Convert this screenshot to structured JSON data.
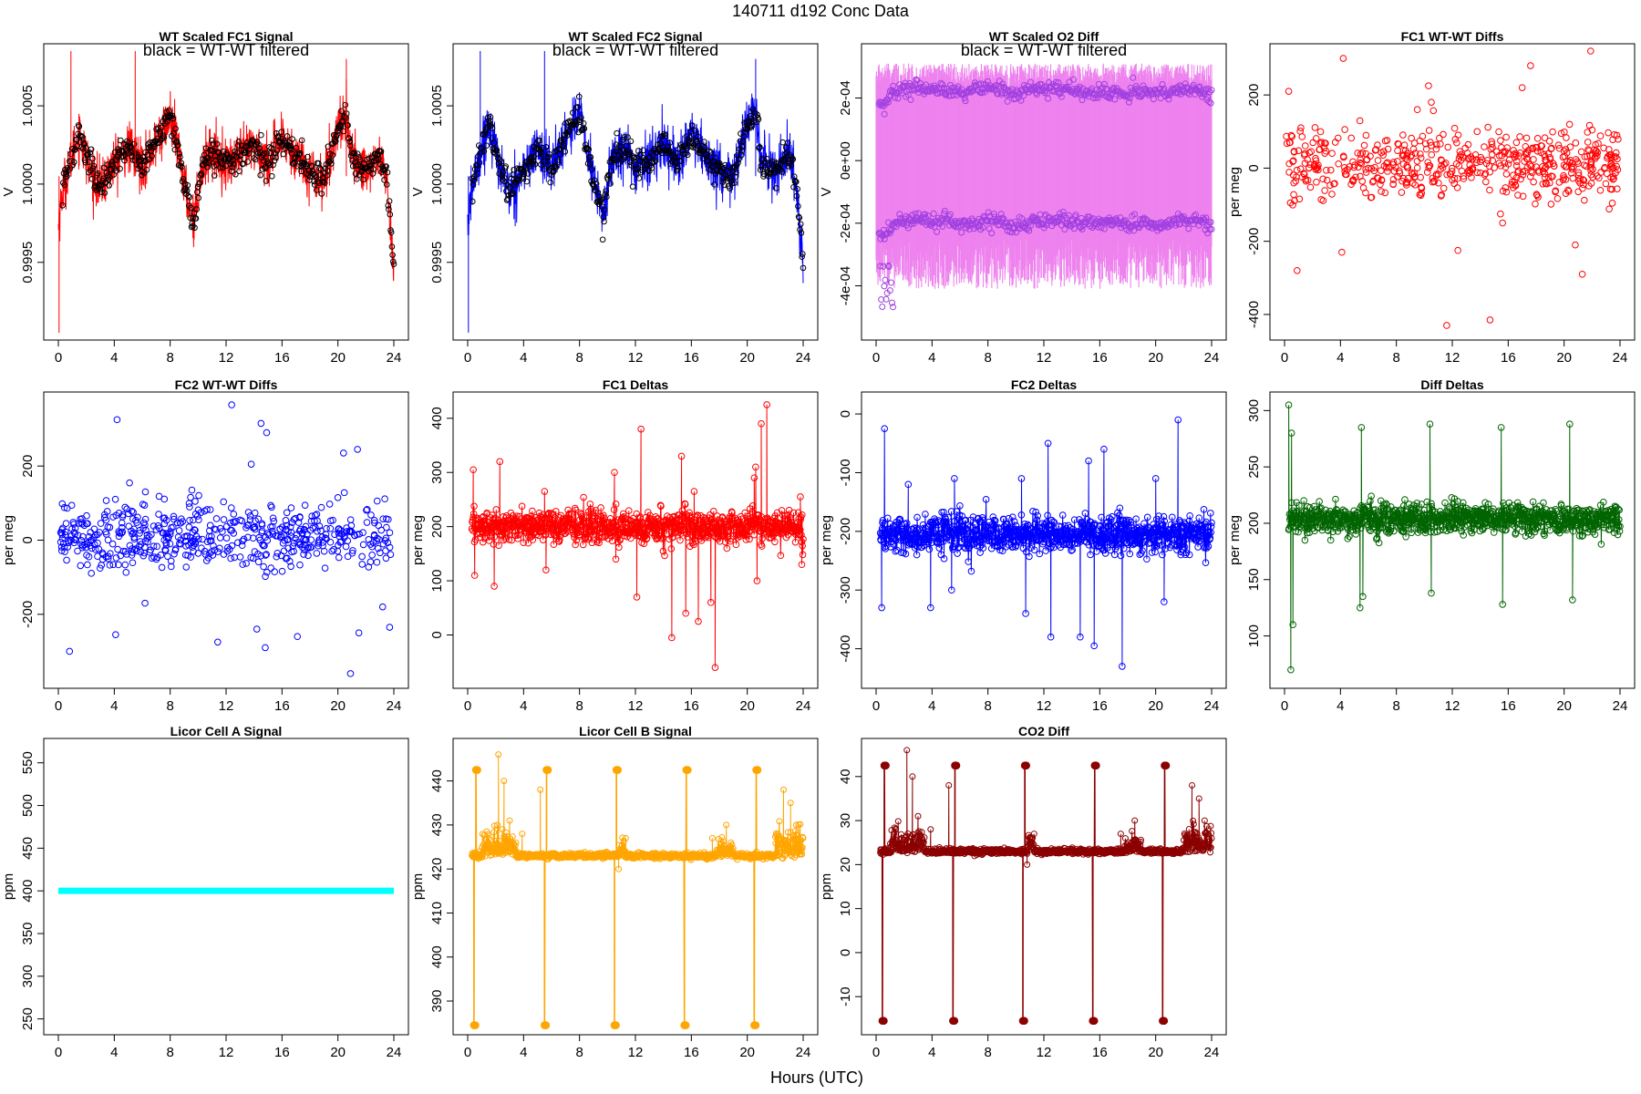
{
  "header": {
    "title": "140711   d192   Conc Data"
  },
  "footer": {
    "xlabel": "Hours (UTC)"
  },
  "chart_data": [
    {
      "id": "fc1sig",
      "type": "line",
      "title": "WT Scaled FC1 Signal",
      "note": "black = WT-WT filtered",
      "ylabel": "V",
      "xlim": [
        0,
        24
      ],
      "ylim": [
        0.99905,
        1.00085
      ],
      "xticks": [
        0,
        4,
        8,
        12,
        16,
        20,
        24
      ],
      "yticks": [
        0.9995,
        1.0,
        1.0005
      ],
      "ytick_labels": [
        "0.9995",
        "1.0000",
        "1.0005"
      ],
      "color": "#ff0000",
      "overlay_color": "#000000",
      "marker": "open-circle",
      "style": "dense",
      "base": 1.00005,
      "amp": 0.00018,
      "noise": 9e-05,
      "overlay": true,
      "profile": [
        [
          0,
          -1.8
        ],
        [
          0.3,
          -0.5
        ],
        [
          0.8,
          0.4
        ],
        [
          1.5,
          1.6
        ],
        [
          2.2,
          0.3
        ],
        [
          3,
          -0.4
        ],
        [
          4,
          0.5
        ],
        [
          5,
          1.0
        ],
        [
          6,
          0.4
        ],
        [
          7,
          1.2
        ],
        [
          8,
          2.1
        ],
        [
          8.6,
          0.8
        ],
        [
          9.2,
          -0.7
        ],
        [
          9.7,
          -1.6
        ],
        [
          10.3,
          0.4
        ],
        [
          11,
          0.9
        ],
        [
          12,
          0.4
        ],
        [
          13,
          0.7
        ],
        [
          14,
          1.1
        ],
        [
          15,
          0.5
        ],
        [
          16,
          1.2
        ],
        [
          17,
          0.8
        ],
        [
          18,
          0.2
        ],
        [
          19,
          -0.2
        ],
        [
          20,
          1.8
        ],
        [
          20.6,
          2.2
        ],
        [
          21,
          0.6
        ],
        [
          22,
          0.2
        ],
        [
          23,
          0.7
        ],
        [
          23.5,
          -0.2
        ],
        [
          24,
          -3.2
        ]
      ]
    },
    {
      "id": "fc2sig",
      "type": "line",
      "title": "WT Scaled FC2 Signal",
      "note": "black = WT-WT filtered",
      "ylabel": "V",
      "xlim": [
        0,
        24
      ],
      "ylim": [
        0.99905,
        1.00085
      ],
      "xticks": [
        0,
        4,
        8,
        12,
        16,
        20,
        24
      ],
      "yticks": [
        0.9995,
        1.0,
        1.0005
      ],
      "ytick_labels": [
        "0.9995",
        "1.0000",
        "1.0005"
      ],
      "color": "#0000ff",
      "overlay_color": "#000000",
      "marker": "open-circle",
      "style": "dense",
      "base": 1.00005,
      "amp": 0.00018,
      "noise": 9e-05,
      "overlay": true,
      "profile": [
        [
          0,
          -1.8
        ],
        [
          0.3,
          -0.5
        ],
        [
          0.8,
          0.6
        ],
        [
          1.5,
          1.9
        ],
        [
          2.2,
          0.5
        ],
        [
          3,
          -0.6
        ],
        [
          4,
          0.2
        ],
        [
          5,
          1.0
        ],
        [
          6,
          0.3
        ],
        [
          7,
          1.4
        ],
        [
          8,
          2.3
        ],
        [
          8.6,
          0.7
        ],
        [
          9.2,
          -0.5
        ],
        [
          9.7,
          -1.4
        ],
        [
          10.3,
          0.5
        ],
        [
          11,
          1.1
        ],
        [
          12,
          0.3
        ],
        [
          13,
          0.6
        ],
        [
          14,
          1.2
        ],
        [
          15,
          0.5
        ],
        [
          16,
          1.4
        ],
        [
          17,
          0.7
        ],
        [
          18,
          0.1
        ],
        [
          19,
          -0.1
        ],
        [
          20,
          1.9
        ],
        [
          20.6,
          2.3
        ],
        [
          21,
          0.5
        ],
        [
          22,
          0.2
        ],
        [
          23,
          0.8
        ],
        [
          23.5,
          -0.3
        ],
        [
          24,
          -3.1
        ]
      ]
    },
    {
      "id": "o2diff",
      "type": "line",
      "title": "WT Scaled O2 Diff",
      "note": "black = WT-WT filtered",
      "ylabel": "V",
      "xlim": [
        0,
        24
      ],
      "ylim": [
        -0.00055,
        0.00035
      ],
      "xticks": [
        0,
        4,
        8,
        12,
        16,
        20,
        24
      ],
      "yticks": [
        -0.0004,
        -0.0002,
        0,
        0.0002
      ],
      "ytick_labels": [
        "-4e-04",
        "-2e-04",
        "0e+00",
        "2e-04"
      ],
      "color": "#ee82ee",
      "marker_color": "#a040e0",
      "marker": "open-circle",
      "style": "band",
      "band_upper": 0.00031,
      "band_lower": -0.00041,
      "env_upper": 0.00022,
      "env_lower": -0.0002,
      "env_profile": [
        [
          0,
          -0.9
        ],
        [
          0.5,
          -1.6
        ],
        [
          1,
          -0.3
        ],
        [
          2,
          0.2
        ],
        [
          3,
          0.4
        ],
        [
          4,
          0.1
        ],
        [
          5,
          0.3
        ],
        [
          6,
          -0.2
        ],
        [
          7,
          0.1
        ],
        [
          8,
          0.4
        ],
        [
          9,
          0.1
        ],
        [
          10,
          -0.4
        ],
        [
          11,
          0.2
        ],
        [
          12,
          0.1
        ],
        [
          13,
          0.3
        ],
        [
          14,
          0.2
        ],
        [
          15,
          0.0
        ],
        [
          16,
          -0.1
        ],
        [
          17,
          0.2
        ],
        [
          18,
          -0.3
        ],
        [
          19,
          0.1
        ],
        [
          20,
          -0.2
        ],
        [
          21,
          0.0
        ],
        [
          22,
          0.3
        ],
        [
          23,
          0.2
        ],
        [
          24,
          -0.4
        ]
      ]
    },
    {
      "id": "fc1wtwt",
      "type": "scatter",
      "title": "FC1 WT-WT Diffs",
      "ylabel": "per meg",
      "xlim": [
        0,
        24
      ],
      "ylim": [
        -450,
        320
      ],
      "xticks": [
        0,
        4,
        8,
        12,
        16,
        20,
        24
      ],
      "yticks": [
        -400,
        -200,
        0,
        200
      ],
      "ytick_labels": [
        "-400",
        "-200",
        "0",
        "200"
      ],
      "color": "#ff0000",
      "marker": "open-circle",
      "n": 560,
      "base": 10,
      "spread": 45,
      "outliers": [
        [
          0.3,
          210
        ],
        [
          0.9,
          -280
        ],
        [
          4.2,
          300
        ],
        [
          4.1,
          -230
        ],
        [
          10.3,
          225
        ],
        [
          10.5,
          180
        ],
        [
          11.6,
          -430
        ],
        [
          12.4,
          -225
        ],
        [
          14.7,
          -415
        ],
        [
          17,
          220
        ],
        [
          17.6,
          280
        ],
        [
          21.3,
          -290
        ],
        [
          21.9,
          320
        ],
        [
          20.8,
          -210
        ],
        [
          9.5,
          160
        ],
        [
          15.6,
          -150
        ]
      ]
    },
    {
      "id": "fc2wtwt",
      "type": "scatter",
      "title": "FC2 WT-WT Diffs",
      "ylabel": "per meg",
      "xlim": [
        0,
        24
      ],
      "ylim": [
        -380,
        380
      ],
      "xticks": [
        0,
        4,
        8,
        12,
        16,
        20,
        24
      ],
      "yticks": [
        -200,
        0,
        200
      ],
      "ytick_labels": [
        "-200",
        "0",
        "200"
      ],
      "color": "#0000ff",
      "marker": "open-circle",
      "n": 560,
      "base": 10,
      "spread": 45,
      "outliers": [
        [
          0.8,
          -300
        ],
        [
          4.2,
          325
        ],
        [
          4.1,
          -255
        ],
        [
          11.4,
          -275
        ],
        [
          12.4,
          365
        ],
        [
          13.8,
          205
        ],
        [
          14.5,
          315
        ],
        [
          14.9,
          290
        ],
        [
          14.2,
          -240
        ],
        [
          14.8,
          -290
        ],
        [
          17.1,
          -260
        ],
        [
          20.4,
          235
        ],
        [
          21.4,
          245
        ],
        [
          21.5,
          -250
        ],
        [
          20.9,
          -360
        ],
        [
          23.2,
          -180
        ],
        [
          23.7,
          -235
        ],
        [
          6.2,
          -170
        ]
      ]
    },
    {
      "id": "fc1delta",
      "type": "line",
      "title": "FC1 Deltas",
      "ylabel": "per meg",
      "xlim": [
        0,
        24
      ],
      "ylim": [
        -85,
        435
      ],
      "xticks": [
        0,
        4,
        8,
        12,
        16,
        20,
        24
      ],
      "yticks": [
        0,
        100,
        200,
        300,
        400
      ],
      "ytick_labels": [
        "0",
        "100",
        "200",
        "300",
        "400"
      ],
      "color": "#ff0000",
      "marker": "open-circle",
      "style": "spiky",
      "base": 200,
      "noise": 15,
      "n": 900,
      "spikes": [
        [
          0.4,
          305
        ],
        [
          0.5,
          110
        ],
        [
          2.3,
          320
        ],
        [
          1.9,
          90
        ],
        [
          5.5,
          265
        ],
        [
          5.6,
          120
        ],
        [
          10.5,
          300
        ],
        [
          10.6,
          140
        ],
        [
          12.4,
          380
        ],
        [
          12.1,
          70
        ],
        [
          14.6,
          -5
        ],
        [
          15.3,
          330
        ],
        [
          15.6,
          40
        ],
        [
          16.2,
          265
        ],
        [
          16.5,
          25
        ],
        [
          17.4,
          60
        ],
        [
          17.7,
          -60
        ],
        [
          20.5,
          290
        ],
        [
          20.6,
          310
        ],
        [
          21,
          390
        ],
        [
          21.4,
          425
        ],
        [
          20.7,
          100
        ],
        [
          23.8,
          255
        ],
        [
          23.9,
          130
        ]
      ]
    },
    {
      "id": "fc2delta",
      "type": "line",
      "title": "FC2 Deltas",
      "ylabel": "per meg",
      "xlim": [
        0,
        24
      ],
      "ylim": [
        -455,
        25
      ],
      "xticks": [
        0,
        4,
        8,
        12,
        16,
        20,
        24
      ],
      "yticks": [
        -400,
        -300,
        -200,
        -100,
        0
      ],
      "ytick_labels": [
        "-400",
        "-300",
        "-200",
        "-100",
        "0"
      ],
      "color": "#0000ff",
      "marker": "open-circle",
      "style": "spiky",
      "base": -205,
      "noise": 15,
      "n": 900,
      "spikes": [
        [
          0.4,
          -330
        ],
        [
          0.6,
          -25
        ],
        [
          2.3,
          -120
        ],
        [
          3.9,
          -330
        ],
        [
          5.6,
          -110
        ],
        [
          5.4,
          -300
        ],
        [
          10.4,
          -110
        ],
        [
          10.7,
          -340
        ],
        [
          12.3,
          -50
        ],
        [
          12.5,
          -380
        ],
        [
          14.6,
          -380
        ],
        [
          15.2,
          -80
        ],
        [
          15.6,
          -395
        ],
        [
          16.3,
          -60
        ],
        [
          17.6,
          -430
        ],
        [
          20,
          -110
        ],
        [
          20.6,
          -320
        ],
        [
          21.6,
          -10
        ],
        [
          21.8,
          -240
        ]
      ]
    },
    {
      "id": "diffdelta",
      "type": "line",
      "title": "Diff Deltas",
      "ylabel": "per meg",
      "xlim": [
        0,
        24
      ],
      "ylim": [
        60,
        310
      ],
      "xticks": [
        0,
        4,
        8,
        12,
        16,
        20,
        24
      ],
      "yticks": [
        100,
        150,
        200,
        250,
        300
      ],
      "ytick_labels": [
        "100",
        "150",
        "200",
        "250",
        "300"
      ],
      "color": "#006400",
      "marker": "open-circle",
      "style": "spiky",
      "base": 204,
      "noise": 7,
      "n": 900,
      "spikes": [
        [
          0.3,
          305
        ],
        [
          0.45,
          70
        ],
        [
          0.5,
          280
        ],
        [
          0.6,
          110
        ],
        [
          5.4,
          125
        ],
        [
          5.5,
          285
        ],
        [
          5.6,
          135
        ],
        [
          10.4,
          288
        ],
        [
          10.5,
          138
        ],
        [
          15.5,
          285
        ],
        [
          15.6,
          128
        ],
        [
          20.4,
          288
        ],
        [
          20.6,
          132
        ]
      ]
    },
    {
      "id": "licora",
      "type": "line",
      "title": "Licor Cell A Signal",
      "ylabel": "ppm",
      "xlim": [
        0,
        24
      ],
      "ylim": [
        240,
        570
      ],
      "xticks": [
        0,
        4,
        8,
        12,
        16,
        20,
        24
      ],
      "yticks": [
        250,
        300,
        350,
        400,
        450,
        500,
        550
      ],
      "ytick_labels": [
        "250",
        "300",
        "350",
        "400",
        "450",
        "500",
        "550"
      ],
      "color": "#00ffff",
      "style": "flat",
      "value": 400
    },
    {
      "id": "licorb",
      "type": "line",
      "title": "Licor Cell B Signal",
      "ylabel": "ppm",
      "xlim": [
        0,
        24
      ],
      "ylim": [
        384,
        448
      ],
      "xticks": [
        0,
        4,
        8,
        12,
        16,
        20,
        24
      ],
      "yticks": [
        390,
        400,
        410,
        420,
        430,
        440
      ],
      "ytick_labels": [
        "390",
        "400",
        "410",
        "420",
        "430",
        "440"
      ],
      "color": "#ffa500",
      "marker": "open-circle",
      "style": "calib",
      "base": 423,
      "noise": 0.3,
      "cal_times": [
        0.45,
        5.5,
        10.5,
        15.5,
        20.5
      ],
      "cal_high": 442.5,
      "cal_low": 384.5,
      "bursts": [
        [
          1,
          3.5,
          2.5
        ],
        [
          10.8,
          11.3,
          1.5
        ],
        [
          17.8,
          19,
          1.5
        ],
        [
          22,
          24,
          3
        ]
      ],
      "spikes": [
        [
          2.2,
          446
        ],
        [
          2.6,
          440
        ],
        [
          3,
          431
        ],
        [
          3.9,
          428
        ],
        [
          5.2,
          438
        ],
        [
          10.8,
          420
        ],
        [
          11.3,
          427
        ],
        [
          17.5,
          427
        ],
        [
          18.5,
          430
        ],
        [
          22.6,
          438
        ],
        [
          23.1,
          435
        ],
        [
          23.5,
          430
        ]
      ]
    },
    {
      "id": "co2diff",
      "type": "line",
      "title": "CO2 Diff",
      "ylabel": "ppm",
      "xlim": [
        0,
        24
      ],
      "ylim": [
        -17,
        47
      ],
      "xticks": [
        0,
        4,
        8,
        12,
        16,
        20,
        24
      ],
      "yticks": [
        -10,
        0,
        10,
        20,
        30,
        40
      ],
      "ytick_labels": [
        "-10",
        "0",
        "10",
        "20",
        "30",
        "40"
      ],
      "color": "#8b0000",
      "marker": "open-circle",
      "style": "calib",
      "base": 23,
      "noise": 0.3,
      "cal_times": [
        0.45,
        5.5,
        10.5,
        15.5,
        20.5
      ],
      "cal_high": 42.5,
      "cal_low": -15.5,
      "bursts": [
        [
          1,
          3.5,
          2.5
        ],
        [
          10.8,
          11.3,
          1.5
        ],
        [
          17.8,
          19,
          1.5
        ],
        [
          22,
          24,
          3
        ]
      ],
      "spikes": [
        [
          2.2,
          46
        ],
        [
          2.6,
          40
        ],
        [
          3,
          31
        ],
        [
          3.9,
          28
        ],
        [
          5.2,
          38
        ],
        [
          10.8,
          20
        ],
        [
          11.3,
          27
        ],
        [
          17.5,
          27
        ],
        [
          18.5,
          30
        ],
        [
          22.6,
          38
        ],
        [
          23.1,
          35
        ],
        [
          23.5,
          30
        ]
      ]
    }
  ]
}
